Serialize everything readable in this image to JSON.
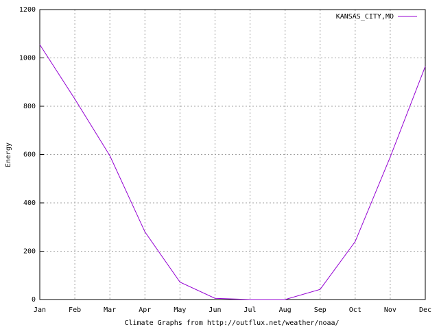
{
  "chart_data": {
    "type": "line",
    "x_label": "Climate Graphs from http://outflux.net/weather/noaa/",
    "y_label": "Energy",
    "categories": [
      "Jan",
      "Feb",
      "Mar",
      "Apr",
      "May",
      "Jun",
      "Jul",
      "Aug",
      "Sep",
      "Oct",
      "Nov",
      "Dec"
    ],
    "series": [
      {
        "name": "KANSAS_CITY,MO",
        "color": "#9400d3",
        "values": [
          1055,
          830,
          595,
          280,
          72,
          5,
          0,
          0,
          42,
          240,
          590,
          965
        ]
      }
    ],
    "ylim": [
      0,
      1200
    ],
    "yticks": [
      0,
      200,
      400,
      600,
      800,
      1000,
      1200
    ],
    "grid": true,
    "legend": "top-right"
  }
}
